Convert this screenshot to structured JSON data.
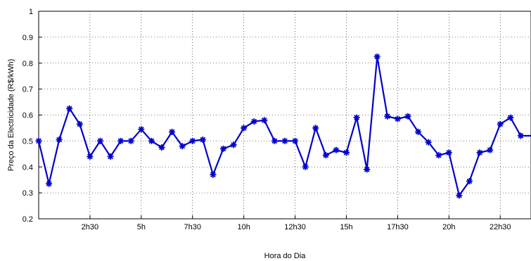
{
  "chart_data": {
    "type": "line",
    "xlabel": "Hora do Dia",
    "ylabel": "Preço da Electricidade (R$/kWh)",
    "xlim": [
      0,
      48
    ],
    "ylim": [
      0.2,
      1
    ],
    "grid": true,
    "line_color": "#0000cc",
    "marker": "asterisk",
    "xticks": [
      {
        "value": 5,
        "label": "2h30"
      },
      {
        "value": 10,
        "label": "5h"
      },
      {
        "value": 15,
        "label": "7h30"
      },
      {
        "value": 20,
        "label": "10h"
      },
      {
        "value": 25,
        "label": "12h30"
      },
      {
        "value": 30,
        "label": "15h"
      },
      {
        "value": 35,
        "label": "17h30"
      },
      {
        "value": 40,
        "label": "20h"
      },
      {
        "value": 45,
        "label": "22h30"
      }
    ],
    "yticks": [
      {
        "value": 0.2,
        "label": "0.2"
      },
      {
        "value": 0.3,
        "label": "0.3"
      },
      {
        "value": 0.4,
        "label": "0.4"
      },
      {
        "value": 0.5,
        "label": "0.5"
      },
      {
        "value": 0.6,
        "label": "0.6"
      },
      {
        "value": 0.7,
        "label": "0.7"
      },
      {
        "value": 0.8,
        "label": "0.8"
      },
      {
        "value": 0.9,
        "label": "0.9"
      },
      {
        "value": 1,
        "label": "1"
      }
    ],
    "series": [
      {
        "x": [
          0,
          1,
          2,
          3,
          4,
          5,
          6,
          7,
          8,
          9,
          10,
          11,
          12,
          13,
          14,
          15,
          16,
          17,
          18,
          19,
          20,
          21,
          22,
          23,
          24,
          25,
          26,
          27,
          28,
          29,
          30,
          31,
          32,
          33,
          34,
          35,
          36,
          37,
          38,
          39,
          40,
          41,
          42,
          43,
          44,
          45,
          46,
          47,
          48
        ],
        "values": [
          0.5,
          0.335,
          0.505,
          0.625,
          0.565,
          0.44,
          0.5,
          0.44,
          0.5,
          0.5,
          0.545,
          0.5,
          0.475,
          0.535,
          0.48,
          0.5,
          0.505,
          0.37,
          0.47,
          0.485,
          0.55,
          0.575,
          0.58,
          0.5,
          0.5,
          0.5,
          0.4,
          0.55,
          0.445,
          0.465,
          0.455,
          0.59,
          0.39,
          0.825,
          0.595,
          0.585,
          0.595,
          0.535,
          0.495,
          0.445,
          0.455,
          0.29,
          0.345,
          0.455,
          0.465,
          0.565,
          0.59,
          0.52,
          0.52
        ]
      }
    ]
  }
}
